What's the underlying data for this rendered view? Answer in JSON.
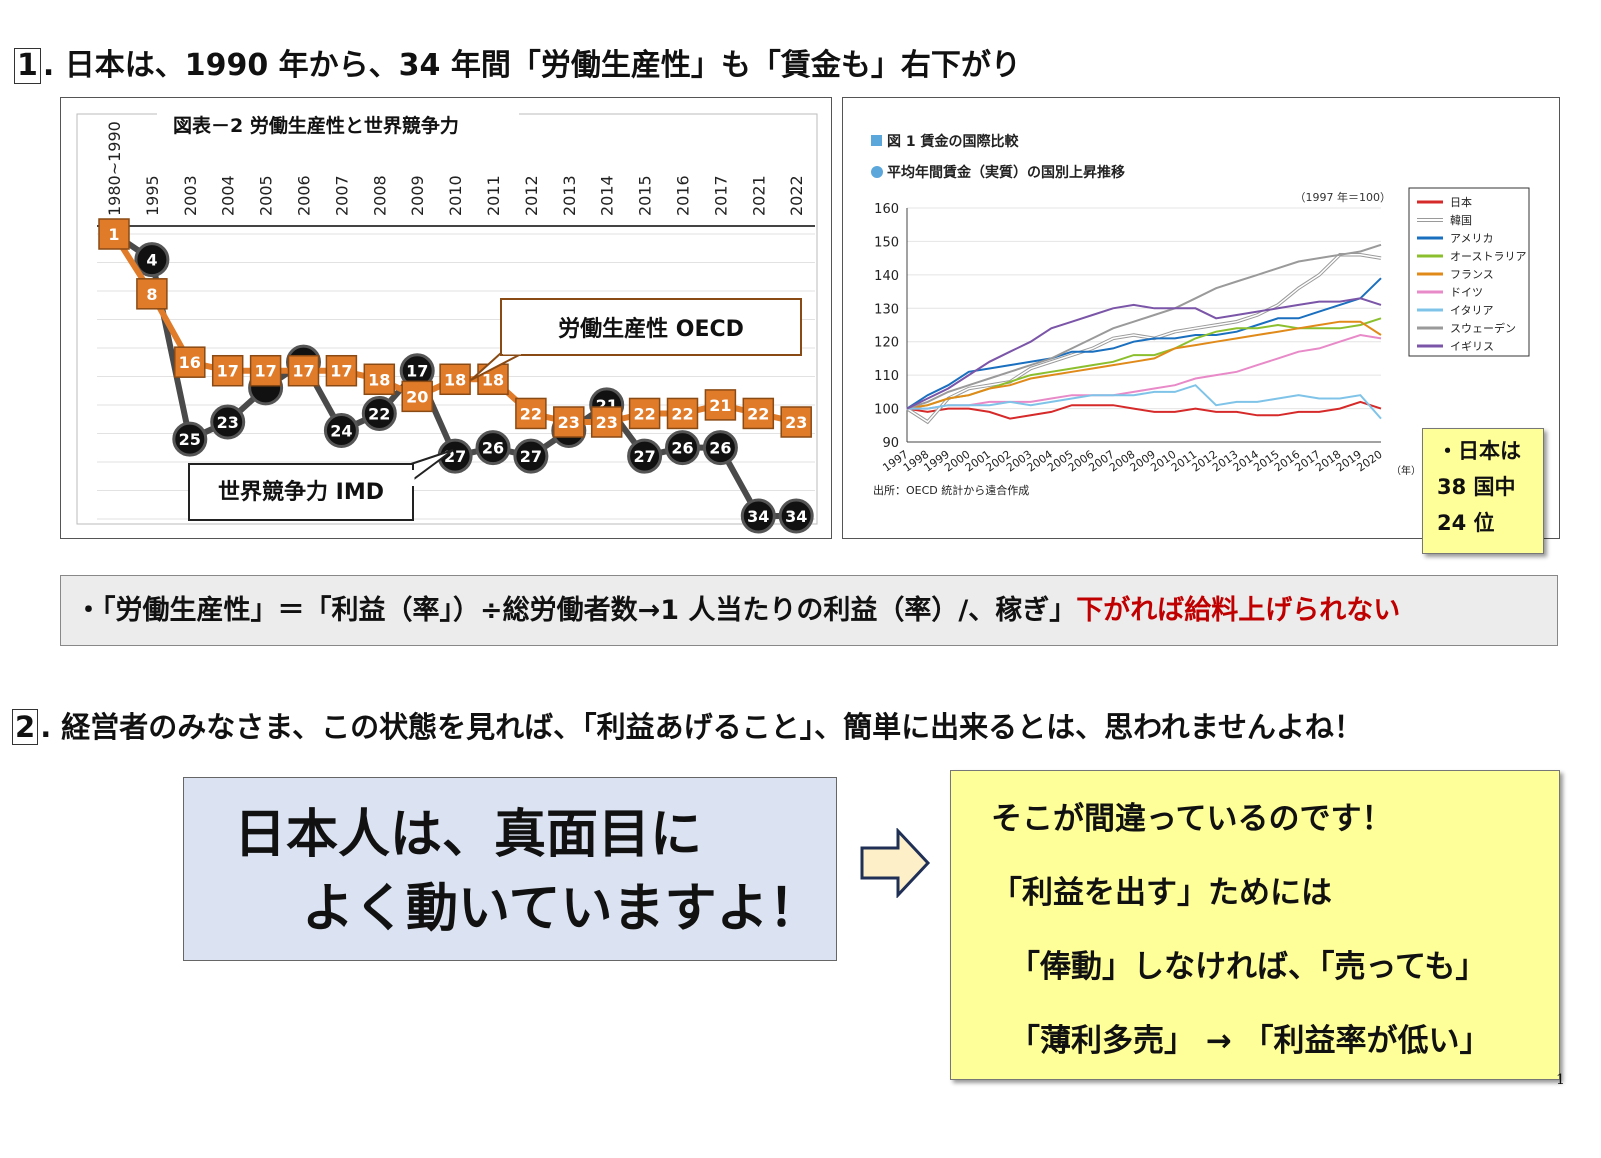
{
  "heading1": {
    "num": "1",
    "text": ". 日本は、1990 年から、34 年間「労働生産性」も「賃金も」右下がり"
  },
  "chart_data": [
    {
      "type": "line",
      "title": "図表－2 労働生産性と世界競争力",
      "categories": [
        "1980~1990",
        "1995",
        "2003",
        "2004",
        "2005",
        "2006",
        "2007",
        "2008",
        "2009",
        "2010",
        "2011",
        "2012",
        "2013",
        "2014",
        "2015",
        "2016",
        "2017",
        "2021",
        "2022"
      ],
      "series": [
        {
          "name": "労働生産性 OECD",
          "color": "#e07b2a",
          "values": [
            1,
            8,
            16,
            17,
            17,
            17,
            17,
            18,
            20,
            18,
            18,
            22,
            23,
            23,
            22,
            22,
            21,
            22,
            23
          ]
        },
        {
          "name": "世界競争力 IMD",
          "color": "#222222",
          "values": [
            1,
            4,
            25,
            23,
            19,
            16,
            24,
            22,
            17,
            27,
            26,
            27,
            24,
            21,
            27,
            26,
            26,
            34,
            34
          ],
          "labels": [
            "",
            "4",
            "25",
            "23",
            "",
            "",
            "24",
            "22",
            "17",
            "27",
            "26",
            "27",
            "",
            "21",
            "27",
            "26",
            "26",
            "34",
            "34"
          ]
        }
      ],
      "callouts": [
        "労働生産性 OECD",
        "世界競争力 IMD"
      ],
      "ylim": [
        0,
        36
      ]
    },
    {
      "type": "line",
      "title": "図 1 賃金の国際比較",
      "subtitle": "平均年間賃金（実質）の国別上昇推移",
      "note": "（1997 年＝100）",
      "source": "出所：OECD 統計から遠合作成",
      "xlabel": "（年）",
      "x": [
        1997,
        1998,
        1999,
        2000,
        2001,
        2002,
        2003,
        2004,
        2005,
        2006,
        2007,
        2008,
        2009,
        2010,
        2011,
        2012,
        2013,
        2014,
        2015,
        2016,
        2017,
        2018,
        2019,
        2020
      ],
      "yticks": [
        90,
        100,
        110,
        120,
        130,
        140,
        150,
        160
      ],
      "ylim": [
        90,
        160
      ],
      "legend_position": "right",
      "series": [
        {
          "name": "日本",
          "color": "#d62a2a",
          "values": [
            100,
            99,
            100,
            100,
            99,
            97,
            98,
            99,
            101,
            101,
            101,
            100,
            99,
            99,
            100,
            99,
            99,
            98,
            98,
            99,
            99,
            100,
            102,
            100
          ]
        },
        {
          "name": "韓国",
          "color": "#b0b0b0",
          "values": [
            100,
            96,
            103,
            106,
            107,
            108,
            112,
            114,
            116,
            118,
            121,
            122,
            121,
            123,
            124,
            125,
            126,
            128,
            131,
            136,
            140,
            146,
            146,
            145
          ]
        },
        {
          "name": "アメリカ",
          "color": "#1a6fbf",
          "values": [
            100,
            104,
            107,
            111,
            112,
            113,
            114,
            115,
            117,
            117,
            118,
            120,
            121,
            121,
            122,
            122,
            123,
            125,
            127,
            127,
            129,
            131,
            133,
            139
          ]
        },
        {
          "name": "オーストラリア",
          "color": "#8cbf2e",
          "values": [
            100,
            101,
            103,
            104,
            106,
            108,
            110,
            111,
            112,
            113,
            114,
            116,
            116,
            118,
            121,
            123,
            124,
            124,
            125,
            124,
            124,
            124,
            125,
            127
          ]
        },
        {
          "name": "フランス",
          "color": "#e08a1a",
          "values": [
            100,
            101,
            103,
            104,
            106,
            107,
            109,
            110,
            111,
            112,
            113,
            114,
            115,
            118,
            119,
            120,
            121,
            122,
            123,
            124,
            125,
            126,
            126,
            122
          ]
        },
        {
          "name": "ドイツ",
          "color": "#e88ac8",
          "values": [
            100,
            100,
            101,
            101,
            102,
            102,
            102,
            103,
            104,
            104,
            104,
            105,
            106,
            107,
            109,
            110,
            111,
            113,
            115,
            117,
            118,
            120,
            122,
            121
          ]
        },
        {
          "name": "イタリア",
          "color": "#7fc4e8",
          "values": [
            100,
            100,
            101,
            101,
            101,
            102,
            101,
            102,
            103,
            104,
            104,
            104,
            105,
            105,
            107,
            101,
            102,
            102,
            103,
            104,
            103,
            103,
            104,
            97
          ]
        },
        {
          "name": "スウェーデン",
          "color": "#9a9a9a",
          "values": [
            100,
            102,
            105,
            107,
            109,
            111,
            113,
            115,
            118,
            121,
            124,
            126,
            128,
            130,
            133,
            136,
            138,
            140,
            142,
            144,
            145,
            146,
            147,
            149
          ]
        },
        {
          "name": "イギリス",
          "color": "#7b55a8",
          "values": [
            100,
            103,
            106,
            110,
            114,
            117,
            120,
            124,
            126,
            128,
            130,
            131,
            130,
            130,
            130,
            127,
            128,
            129,
            130,
            131,
            132,
            132,
            133,
            131
          ]
        }
      ]
    }
  ],
  "japan_rank": {
    "line1": "・日本は",
    "line2": "38 国中",
    "line3": "24 位"
  },
  "definition": {
    "black": "・「労働生産性」＝「利益（率」）÷総労働者数→1 人当たりの利益（率）/、稼ぎ」",
    "red": "下がれば給料上げられない"
  },
  "heading2": {
    "num": "2",
    "text": ". 経営者のみなさま、この状態を見れば、「利益あげること」、簡単に出来るとは、思われませんよね！"
  },
  "blue_box": {
    "line1": "日本人は、真面目に",
    "line2": "よく動いていますよ！"
  },
  "yellow_box": {
    "line1": "そこが間違っているのです！",
    "line2": "「利益を出す」ためには",
    "line3": "「俸動」しなければ、「売っても」",
    "line4": "「薄利多売」 → 「利益率が低い」"
  },
  "page_number": "1"
}
